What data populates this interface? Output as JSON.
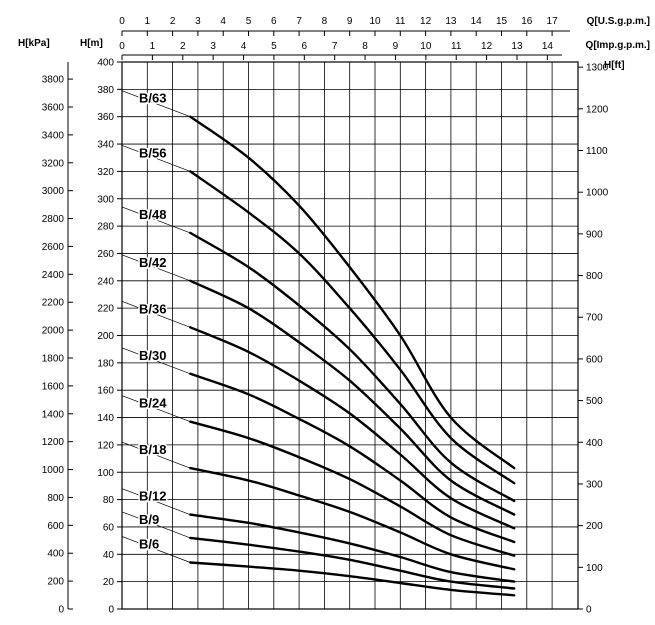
{
  "chart_data": {
    "type": "line",
    "units": {
      "left_outer": "H[kPa]",
      "left_inner": "H[m]",
      "right": "H[ft]",
      "top_usgpm": "Q[U.S.g.p.m.]",
      "top_impgpm": "Q[Imp.g.p.m.]"
    },
    "ylim_m": [
      0,
      400
    ],
    "xlim_usgpm": [
      0,
      17
    ],
    "y_ticks_m": [
      "0",
      "20",
      "40",
      "60",
      "80",
      "100",
      "120",
      "140",
      "160",
      "180",
      "200",
      "220",
      "240",
      "260",
      "280",
      "300",
      "320",
      "340",
      "360",
      "380",
      "400"
    ],
    "y_ticks_kpa": [
      "0",
      "200",
      "400",
      "600",
      "800",
      "1000",
      "1200",
      "1400",
      "1600",
      "1800",
      "2000",
      "2200",
      "2400",
      "2600",
      "2800",
      "3000",
      "3200",
      "3400",
      "3600",
      "3800"
    ],
    "y_ticks_ft": [
      "0",
      "100",
      "200",
      "300",
      "400",
      "500",
      "600",
      "700",
      "800",
      "900",
      "1000",
      "1100",
      "1200",
      "1300"
    ],
    "x_ticks_usgpm": [
      "0",
      "1",
      "2",
      "3",
      "4",
      "5",
      "6",
      "7",
      "8",
      "9",
      "10",
      "11",
      "12",
      "13",
      "14",
      "15",
      "16",
      "17"
    ],
    "x_ticks_impgpm": [
      "0",
      "1",
      "2",
      "3",
      "4",
      "5",
      "6",
      "7",
      "8",
      "9",
      "10",
      "11",
      "12",
      "13",
      "14"
    ],
    "curve_x_usgpm": [
      2.7,
      5,
      7,
      9,
      11,
      13,
      15.5
    ],
    "series": [
      {
        "name": "B/63",
        "values": [
          360,
          330,
          295,
          250,
          200,
          140,
          103
        ]
      },
      {
        "name": "B/56",
        "values": [
          320,
          290,
          260,
          220,
          175,
          125,
          92
        ]
      },
      {
        "name": "B/48",
        "values": [
          275,
          250,
          222,
          190,
          150,
          107,
          79
        ]
      },
      {
        "name": "B/42",
        "values": [
          240,
          220,
          195,
          167,
          132,
          94,
          69
        ]
      },
      {
        "name": "B/36",
        "values": [
          206,
          188,
          167,
          143,
          113,
          81,
          59
        ]
      },
      {
        "name": "B/30",
        "values": [
          172,
          157,
          139,
          119,
          94,
          67,
          49
        ]
      },
      {
        "name": "B/24",
        "values": [
          137,
          125,
          111,
          95,
          75,
          54,
          39
        ]
      },
      {
        "name": "B/18",
        "values": [
          103,
          94,
          83,
          71,
          56,
          40,
          29
        ]
      },
      {
        "name": "B/12",
        "values": [
          69,
          63,
          56,
          48,
          38,
          27,
          20
        ]
      },
      {
        "name": "B/9",
        "values": [
          52,
          47,
          42,
          36,
          28,
          20,
          15
        ]
      },
      {
        "name": "B/6",
        "values": [
          34,
          31,
          28,
          24,
          19,
          14,
          10
        ]
      }
    ],
    "grid": true,
    "colors": {
      "curve": "#000000",
      "grid": "#000000"
    }
  }
}
